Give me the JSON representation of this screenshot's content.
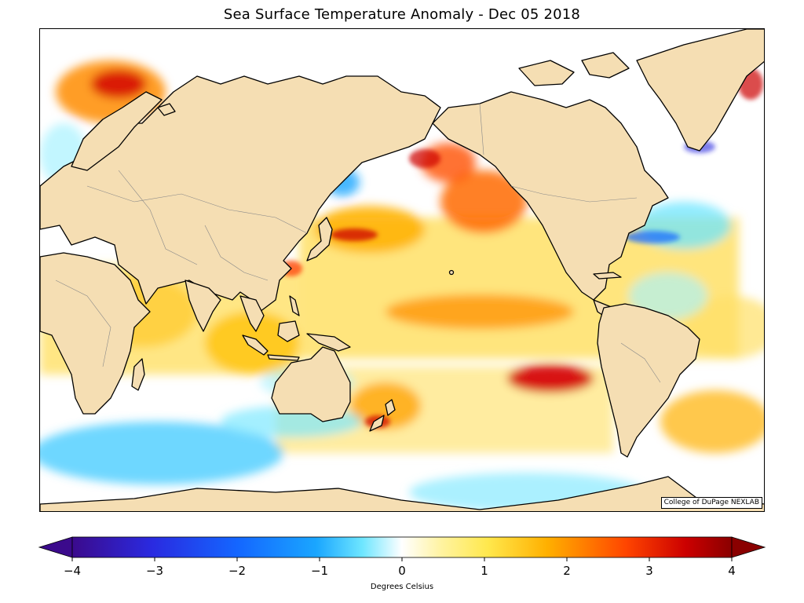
{
  "title": "Sea Surface Temperature Anomaly - Dec 05 2018",
  "credit": "College of DuPage NEXLAB",
  "colorbar": {
    "label": "Degrees Celsius",
    "ticks": [
      "−4",
      "−3",
      "−2",
      "−1",
      "0",
      "1",
      "2",
      "3",
      "4"
    ],
    "tick_values": [
      -4,
      -3,
      -2,
      -1,
      0,
      1,
      2,
      3,
      4
    ],
    "min": -4,
    "max": 4,
    "colors": [
      "#3b0a8c",
      "#2a2ae0",
      "#1466ff",
      "#1aa6ff",
      "#6ee6ff",
      "#ffffff",
      "#ffe84d",
      "#ffb000",
      "#ff5a00",
      "#cc0000",
      "#8a0000"
    ]
  },
  "map": {
    "land_color": "#f5deb3",
    "ocean_color": "#ffffff",
    "coast_color": "#000000",
    "border_color": "#888888"
  }
}
